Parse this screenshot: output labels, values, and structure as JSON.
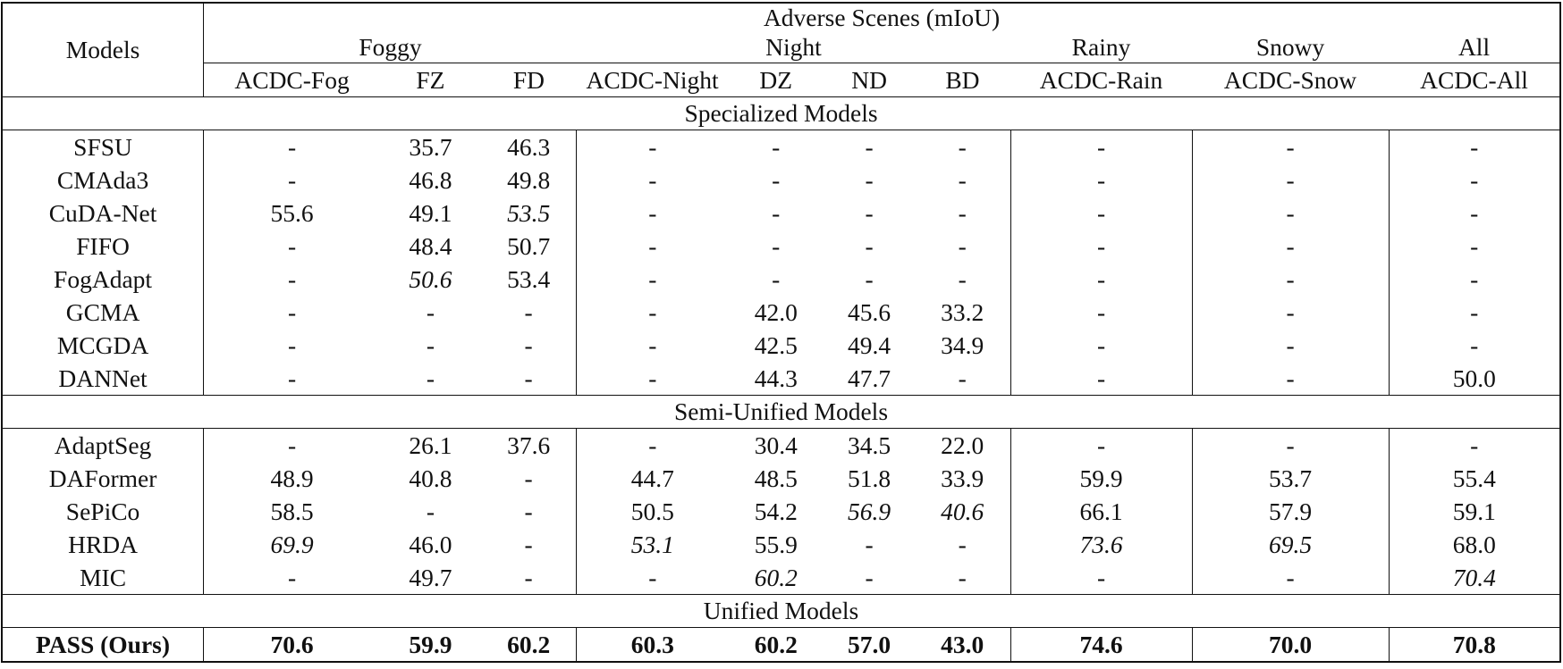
{
  "header": {
    "models_label": "Models",
    "top_group": "Adverse Scenes (mIoU)",
    "groups": {
      "foggy": "Foggy",
      "night": "Night",
      "rainy": "Rainy",
      "snowy": "Snowy",
      "all": "All"
    },
    "columns": [
      "ACDC-Fog",
      "FZ",
      "FD",
      "ACDC-Night",
      "DZ",
      "ND",
      "BD",
      "ACDC-Rain",
      "ACDC-Snow",
      "ACDC-All"
    ]
  },
  "sections": [
    {
      "title": "Specialized Models",
      "rows": [
        {
          "model": "SFSU",
          "values": [
            "-",
            "35.7",
            "46.3",
            "-",
            "-",
            "-",
            "-",
            "-",
            "-",
            "-"
          ]
        },
        {
          "model": "CMAda3",
          "values": [
            "-",
            "46.8",
            "49.8",
            "-",
            "-",
            "-",
            "-",
            "-",
            "-",
            "-"
          ]
        },
        {
          "model": "CuDA-Net",
          "values": [
            "55.6",
            "49.1",
            "53.5",
            "-",
            "-",
            "-",
            "-",
            "-",
            "-",
            "-"
          ]
        },
        {
          "model": "FIFO",
          "values": [
            "-",
            "48.4",
            "50.7",
            "-",
            "-",
            "-",
            "-",
            "-",
            "-",
            "-"
          ]
        },
        {
          "model": "FogAdapt",
          "values": [
            "-",
            "50.6",
            "53.4",
            "-",
            "-",
            "-",
            "-",
            "-",
            "-",
            "-"
          ]
        },
        {
          "model": "GCMA",
          "values": [
            "-",
            "-",
            "-",
            "-",
            "42.0",
            "45.6",
            "33.2",
            "-",
            "-",
            "-"
          ]
        },
        {
          "model": "MCGDA",
          "values": [
            "-",
            "-",
            "-",
            "-",
            "42.5",
            "49.4",
            "34.9",
            "-",
            "-",
            "-"
          ]
        },
        {
          "model": "DANNet",
          "values": [
            "-",
            "-",
            "-",
            "-",
            "44.3",
            "47.7",
            "-",
            "-",
            "-",
            "50.0"
          ]
        }
      ]
    },
    {
      "title": "Semi-Unified Models",
      "rows": [
        {
          "model": "AdaptSeg",
          "values": [
            "-",
            "26.1",
            "37.6",
            "-",
            "30.4",
            "34.5",
            "22.0",
            "-",
            "-",
            "-"
          ]
        },
        {
          "model": "DAFormer",
          "values": [
            "48.9",
            "40.8",
            "-",
            "44.7",
            "48.5",
            "51.8",
            "33.9",
            "59.9",
            "53.7",
            "55.4"
          ]
        },
        {
          "model": "SePiCo",
          "values": [
            "58.5",
            "-",
            "-",
            "50.5",
            "54.2",
            "56.9",
            "40.6",
            "66.1",
            "57.9",
            "59.1"
          ]
        },
        {
          "model": "HRDA",
          "values": [
            "69.9",
            "46.0",
            "-",
            "53.1",
            "55.9",
            "-",
            "-",
            "73.6",
            "69.5",
            "68.0"
          ]
        },
        {
          "model": "MIC",
          "values": [
            "-",
            "49.7",
            "-",
            "-",
            "60.2",
            "-",
            "-",
            "-",
            "-",
            "70.4"
          ]
        }
      ]
    },
    {
      "title": "Unified Models",
      "rows": [
        {
          "model": "PASS (Ours)",
          "values": [
            "70.6",
            "59.9",
            "60.2",
            "60.3",
            "60.2",
            "57.0",
            "43.0",
            "74.6",
            "70.0",
            "70.8"
          ]
        }
      ]
    }
  ],
  "italic_cells": [
    [
      0,
      2,
      2
    ],
    [
      0,
      4,
      1
    ],
    [
      1,
      2,
      5
    ],
    [
      1,
      2,
      6
    ],
    [
      1,
      3,
      0
    ],
    [
      1,
      3,
      3
    ],
    [
      1,
      3,
      7
    ],
    [
      1,
      3,
      8
    ],
    [
      1,
      4,
      4
    ],
    [
      1,
      4,
      9
    ]
  ],
  "bold_rows": [
    [
      2,
      0
    ]
  ]
}
